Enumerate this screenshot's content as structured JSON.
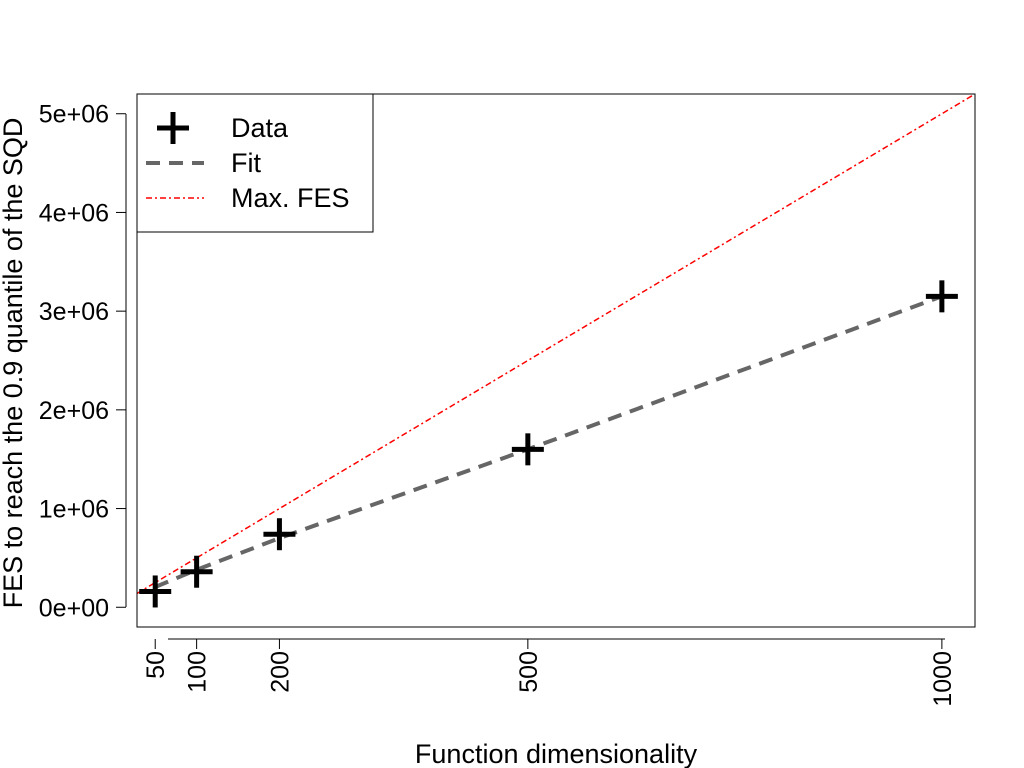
{
  "chart_data": {
    "type": "line",
    "xlabel": "Function dimensionality",
    "ylabel": "FES to reach the 0.9 quantile of the SQD",
    "xlim": [
      28,
      1040
    ],
    "ylim": [
      -200000,
      5200000
    ],
    "x_ticks": [
      50,
      100,
      200,
      500,
      1000
    ],
    "x_tick_labels": [
      "50",
      "100",
      "200",
      "500",
      "1000"
    ],
    "y_ticks": [
      0,
      1000000,
      2000000,
      3000000,
      4000000,
      5000000
    ],
    "y_tick_labels": [
      "0e+00",
      "1e+06",
      "2e+06",
      "3e+06",
      "4e+06",
      "5e+06"
    ],
    "grid": false,
    "legend_position": "top-left",
    "series": [
      {
        "name": "Data",
        "kind": "points",
        "marker": "plus",
        "color": "#000000",
        "x": [
          50,
          100,
          200,
          500,
          1000
        ],
        "y": [
          160000,
          360000,
          740000,
          1600000,
          3150000
        ]
      },
      {
        "name": "Fit",
        "kind": "line",
        "style": "dashed",
        "color": "#666666",
        "x": [
          50,
          100,
          200,
          500,
          1000
        ],
        "y": [
          205000,
          380000,
          700000,
          1600000,
          3150000
        ]
      },
      {
        "name": "Max. FES",
        "kind": "line",
        "style": "dashdot",
        "color": "#ff0000",
        "x": [
          28,
          1040
        ],
        "y": [
          140000,
          5200000
        ]
      }
    ]
  }
}
